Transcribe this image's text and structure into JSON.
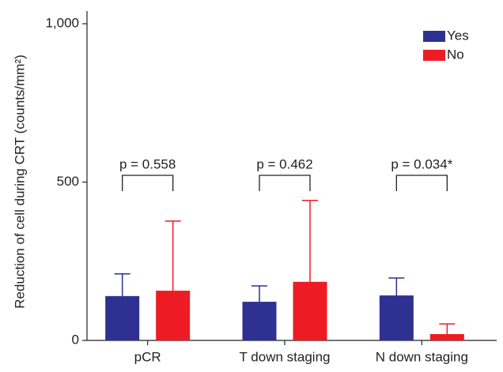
{
  "chart_data": {
    "type": "bar",
    "y_label": "Reduction of cell during CRT (counts/mm²)",
    "categories": [
      "pCR",
      "T down staging",
      "N down staging"
    ],
    "series": [
      {
        "name": "Yes",
        "color": "#2e3192",
        "values": [
          140,
          122,
          142
        ],
        "errors": [
          70,
          50,
          55
        ]
      },
      {
        "name": "No",
        "color": "#ed1c24",
        "values": [
          157,
          185,
          20
        ],
        "errors": [
          220,
          257,
          32
        ]
      }
    ],
    "annotations": [
      "p = 0.558",
      "p = 0.462",
      "p = 0.034*"
    ],
    "ylim": [
      0,
      1040
    ],
    "yticks": [
      0,
      500,
      {
        "value": 1000,
        "label": "1,000"
      }
    ],
    "legend": "top-right"
  }
}
